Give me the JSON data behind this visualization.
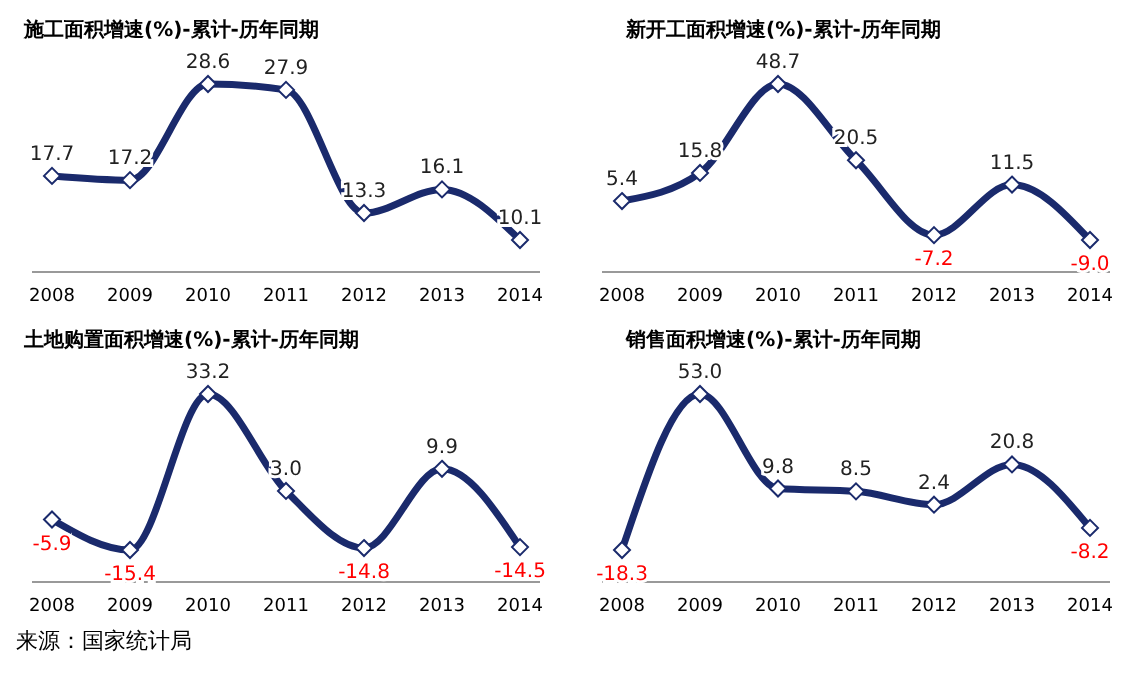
{
  "chart_data": [
    {
      "type": "line",
      "title": "施工面积增速(%)-累计-历年同期",
      "categories": [
        "2008",
        "2009",
        "2010",
        "2011",
        "2012",
        "2013",
        "2014"
      ],
      "tick_labels": "x",
      "marker": "diamond",
      "series": [
        {
          "color": "#1a2a6c",
          "values": [
            17.7,
            17.2,
            28.6,
            27.9,
            13.3,
            16.1,
            10.1
          ],
          "value_labels": [
            "17.7",
            "17.2",
            "28.6",
            "27.9",
            "13.3",
            "16.1",
            "10.1"
          ]
        }
      ]
    },
    {
      "type": "line",
      "title": "新开工面积增速(%)-累计-历年同期",
      "categories": [
        "2008",
        "2009",
        "2010",
        "2011",
        "2012",
        "2013",
        "2014"
      ],
      "tick_labels": "x",
      "marker": "diamond",
      "series": [
        {
          "color": "#1a2a6c",
          "values": [
            5.4,
            15.8,
            48.7,
            20.5,
            -7.2,
            11.5,
            -9.0
          ],
          "value_labels": [
            "5.4",
            "15.8",
            "48.7",
            "20.5",
            "-7.2",
            "11.5",
            "-9.0"
          ]
        }
      ]
    },
    {
      "type": "line",
      "title": "土地购置面积增速(%)-累计-历年同期",
      "categories": [
        "2008",
        "2009",
        "2010",
        "2011",
        "2012",
        "2013",
        "2014"
      ],
      "tick_labels": "x",
      "marker": "diamond",
      "annotations": [
        "来源：国家统计局"
      ],
      "series": [
        {
          "color": "#1a2a6c",
          "values": [
            -5.9,
            -15.4,
            33.2,
            3.0,
            -14.8,
            9.9,
            -14.5
          ],
          "value_labels": [
            "-5.9",
            "-15.4",
            "33.2",
            "3.0",
            "-14.8",
            "9.9",
            "-14.5"
          ]
        }
      ]
    },
    {
      "type": "line",
      "title": "销售面积增速(%)-累计-历年同期",
      "categories": [
        "2008",
        "2009",
        "2010",
        "2011",
        "2012",
        "2013",
        "2014"
      ],
      "tick_labels": "x",
      "marker": "diamond",
      "series": [
        {
          "color": "#1a2a6c",
          "values": [
            -18.3,
            53.0,
            9.8,
            8.5,
            2.4,
            20.8,
            -8.2
          ],
          "value_labels": [
            "-18.3",
            "53.0",
            "9.8",
            "8.5",
            "2.4",
            "20.8",
            "-8.2"
          ]
        }
      ]
    }
  ]
}
